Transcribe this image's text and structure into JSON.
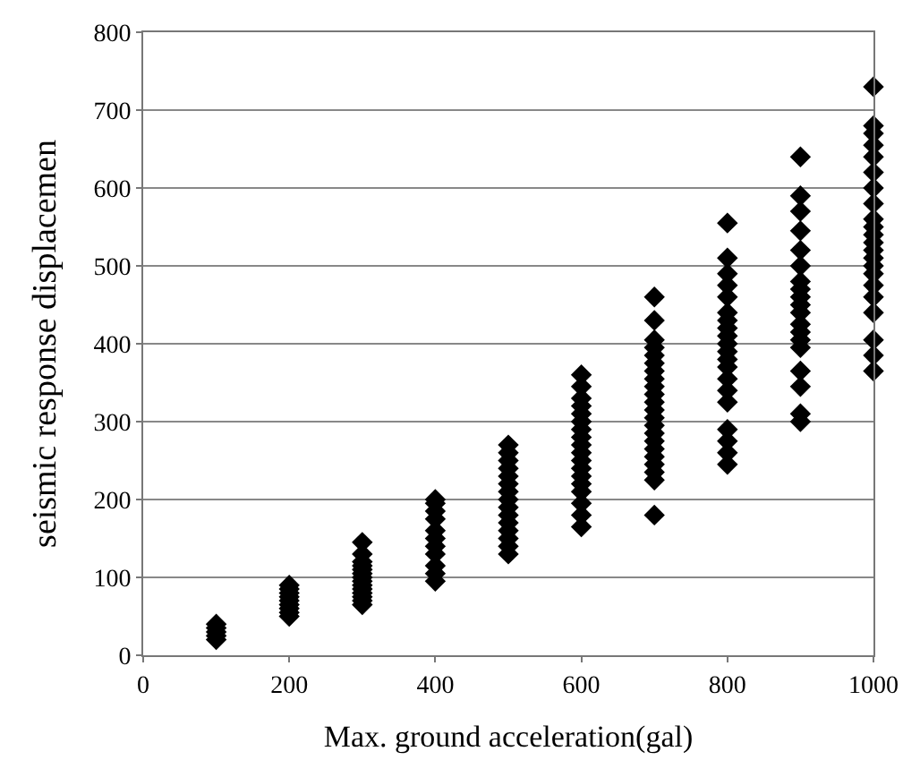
{
  "chart_data": {
    "type": "scatter",
    "xlabel": "Max. ground acceleration(gal)",
    "ylabel": "seismic response displacemen",
    "xlim": [
      0,
      1000
    ],
    "xticks": [
      0,
      200,
      400,
      600,
      800,
      1000
    ],
    "ylim": [
      0,
      800
    ],
    "yticks": [
      0,
      100,
      200,
      300,
      400,
      500,
      600,
      700,
      800
    ],
    "grid": "y",
    "marker": "diamond",
    "legend": false,
    "series": [
      {
        "color": "#000000",
        "x": [
          100,
          100,
          100,
          100,
          100,
          200,
          200,
          200,
          200,
          200,
          200,
          200,
          200,
          200,
          300,
          300,
          300,
          300,
          300,
          300,
          300,
          300,
          300,
          300,
          300,
          300,
          300,
          300,
          400,
          400,
          400,
          400,
          400,
          400,
          400,
          400,
          400,
          400,
          400,
          500,
          500,
          500,
          500,
          500,
          500,
          500,
          500,
          500,
          500,
          500,
          500,
          500,
          500,
          500,
          600,
          600,
          600,
          600,
          600,
          600,
          600,
          600,
          600,
          600,
          600,
          600,
          600,
          600,
          600,
          600,
          600,
          600,
          700,
          700,
          700,
          700,
          700,
          700,
          700,
          700,
          700,
          700,
          700,
          700,
          700,
          700,
          700,
          700,
          700,
          700,
          700,
          700,
          700,
          700,
          800,
          800,
          800,
          800,
          800,
          800,
          800,
          800,
          800,
          800,
          800,
          800,
          800,
          800,
          800,
          800,
          800,
          800,
          800,
          800,
          900,
          900,
          900,
          900,
          900,
          900,
          900,
          900,
          900,
          900,
          900,
          900,
          900,
          900,
          900,
          900,
          900,
          900,
          900,
          1000,
          1000,
          1000,
          1000,
          1000,
          1000,
          1000,
          1000,
          1000,
          1000,
          1000,
          1000,
          1000,
          1000,
          1000,
          1000,
          1000,
          1000,
          1000,
          1000,
          1000,
          1000
        ],
        "values": [
          20,
          25,
          30,
          35,
          40,
          50,
          55,
          60,
          65,
          70,
          75,
          80,
          85,
          90,
          65,
          70,
          75,
          80,
          85,
          90,
          95,
          100,
          105,
          110,
          115,
          120,
          130,
          145,
          95,
          105,
          115,
          130,
          140,
          150,
          160,
          175,
          185,
          195,
          200,
          130,
          140,
          150,
          160,
          170,
          180,
          190,
          200,
          210,
          220,
          230,
          240,
          250,
          260,
          270,
          165,
          180,
          195,
          210,
          220,
          230,
          240,
          250,
          260,
          270,
          280,
          290,
          300,
          310,
          320,
          330,
          345,
          360,
          180,
          225,
          235,
          245,
          255,
          265,
          275,
          285,
          295,
          305,
          315,
          325,
          335,
          345,
          355,
          365,
          375,
          385,
          395,
          405,
          430,
          460,
          245,
          260,
          275,
          290,
          325,
          340,
          355,
          370,
          380,
          390,
          400,
          410,
          420,
          430,
          440,
          460,
          475,
          490,
          510,
          555,
          300,
          310,
          345,
          365,
          395,
          405,
          415,
          425,
          440,
          450,
          460,
          470,
          480,
          500,
          520,
          545,
          570,
          590,
          640,
          365,
          385,
          405,
          440,
          460,
          475,
          490,
          500,
          510,
          520,
          530,
          540,
          550,
          560,
          580,
          600,
          620,
          640,
          655,
          670,
          680,
          730
        ]
      }
    ]
  }
}
